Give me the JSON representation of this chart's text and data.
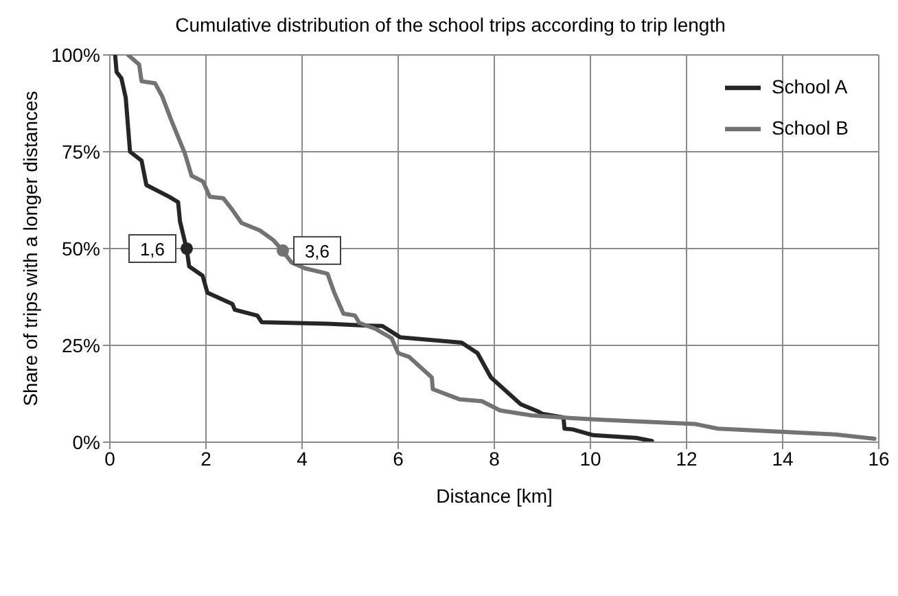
{
  "chart_data": {
    "type": "line",
    "title": "Cumulative distribution of the school trips according to trip length",
    "xlabel": "Distance [km]",
    "ylabel": "Share of trips with a longer distances",
    "xlim": [
      0,
      16
    ],
    "xticks": [
      0,
      2,
      4,
      6,
      8,
      10,
      12,
      14,
      16
    ],
    "ylim": [
      0,
      100
    ],
    "yticks": [
      {
        "value": 0,
        "label": "0%"
      },
      {
        "value": 25,
        "label": "25%"
      },
      {
        "value": 50,
        "label": "50%"
      },
      {
        "value": 75,
        "label": "75%"
      },
      {
        "value": 100,
        "label": "100%"
      }
    ],
    "grid": true,
    "legend": "top right",
    "line_style": "solid",
    "annotations": [
      {
        "text": "1,6",
        "x": 1.6,
        "y": 50
      },
      {
        "text": "3,6",
        "x": 3.6,
        "y": 49.5
      }
    ],
    "series": [
      {
        "name": "School A",
        "color": "#262626",
        "marker": "none",
        "x": [
          0.11,
          0.14,
          0.24,
          0.33,
          0.42,
          0.66,
          0.76,
          1.23,
          1.42,
          1.46,
          1.6,
          1.65,
          1.93,
          2.03,
          2.55,
          2.6,
          3.07,
          3.16,
          4.53,
          5.38,
          5.67,
          6.04,
          7.32,
          7.65,
          7.93,
          8.55,
          8.92,
          9.0,
          9.44,
          9.46,
          9.63,
          10.06,
          10.95,
          11.28
        ],
        "values": [
          100,
          95.6,
          94,
          89,
          75,
          72.7,
          66.4,
          63.4,
          62,
          57,
          49.8,
          45.4,
          43,
          38.6,
          35.7,
          34.2,
          32.7,
          31,
          30.6,
          30.1,
          30,
          27.1,
          25.7,
          23,
          16.7,
          9.8,
          7.9,
          7.3,
          6.4,
          3.5,
          3.3,
          1.8,
          1.1,
          0.3
        ]
      },
      {
        "name": "School B",
        "color": "#737373",
        "marker": "none",
        "x": [
          0.38,
          0.61,
          0.66,
          0.94,
          1.09,
          1.27,
          1.56,
          1.7,
          1.94,
          2.08,
          2.36,
          2.55,
          2.74,
          3.12,
          3.4,
          3.59,
          3.78,
          4.06,
          4.53,
          4.67,
          4.86,
          5.1,
          5.19,
          5.52,
          5.86,
          6.0,
          6.23,
          6.7,
          6.72,
          7.27,
          7.74,
          8.12,
          8.78,
          9.63,
          10.2,
          12.18,
          12.65,
          15.1,
          15.91
        ],
        "values": [
          100,
          97.5,
          93.2,
          92.7,
          89.3,
          83.4,
          74.6,
          68.8,
          67.3,
          63.4,
          63,
          60,
          56.6,
          54.7,
          52.2,
          49.5,
          46.4,
          44.9,
          43.5,
          38.6,
          33.2,
          32.7,
          30.8,
          29.3,
          26.9,
          23,
          22,
          16.7,
          13.7,
          11.1,
          10.6,
          8.2,
          6.9,
          6.2,
          5.8,
          4.7,
          3.5,
          2,
          0.9
        ]
      },
      {
        "type": "scatter",
        "color": "#262626",
        "marker": "circle",
        "x": [
          1.6
        ],
        "values": [
          50
        ]
      },
      {
        "type": "scatter",
        "color": "#737373",
        "marker": "circle",
        "x": [
          3.6
        ],
        "values": [
          49.5
        ]
      }
    ]
  }
}
